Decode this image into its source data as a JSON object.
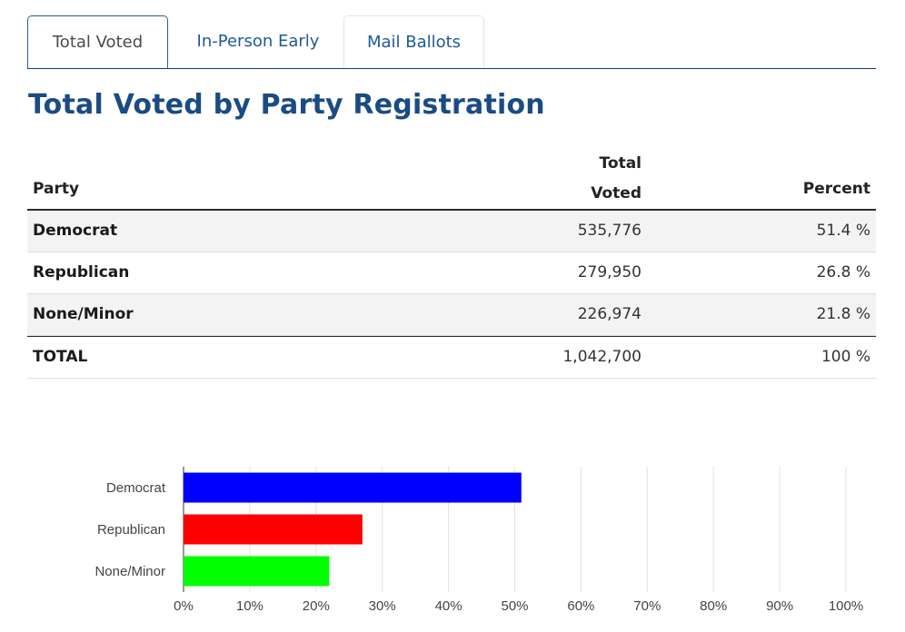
{
  "tabs": [
    {
      "label": "Total Voted"
    },
    {
      "label": "In-Person Early"
    },
    {
      "label": "Mail Ballots"
    }
  ],
  "title": "Total Voted by Party Registration",
  "table": {
    "headers": {
      "party": "Party",
      "voted_line1": "Total",
      "voted_line2": "Voted",
      "percent": "Percent"
    },
    "rows": [
      {
        "party": "Democrat",
        "voted": "535,776",
        "percent": "51.4 %"
      },
      {
        "party": "Republican",
        "voted": "279,950",
        "percent": "26.8 %"
      },
      {
        "party": "None/Minor",
        "voted": "226,974",
        "percent": "21.8 %"
      }
    ],
    "total": {
      "party": "TOTAL",
      "voted": "1,042,700",
      "percent": "100 %"
    }
  },
  "chart_data": {
    "type": "bar",
    "orientation": "horizontal",
    "categories": [
      "Democrat",
      "Republican",
      "None/Minor"
    ],
    "values": [
      51,
      27,
      22
    ],
    "colors": [
      "#0000ff",
      "#ff0000",
      "#00ff00"
    ],
    "xlim": [
      0,
      100
    ],
    "xticks": [
      "0%",
      "10%",
      "20%",
      "30%",
      "40%",
      "50%",
      "60%",
      "70%",
      "80%",
      "90%",
      "100%"
    ],
    "grid": true
  }
}
